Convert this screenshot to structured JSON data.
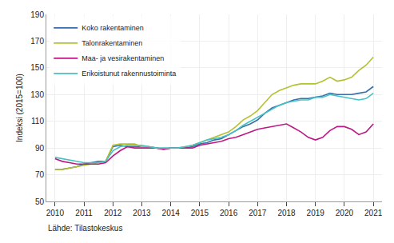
{
  "chart_data": {
    "type": "line",
    "ylabel": "Indeksi (2015=100)",
    "annotations": [
      "Lähde: Tilastokeskus"
    ],
    "x": [
      2010.0,
      2010.25,
      2010.5,
      2010.75,
      2011.0,
      2011.25,
      2011.5,
      2011.75,
      2012.0,
      2012.25,
      2012.5,
      2012.75,
      2013.0,
      2013.25,
      2013.5,
      2013.75,
      2014.0,
      2014.25,
      2014.5,
      2014.75,
      2015.0,
      2015.25,
      2015.5,
      2015.75,
      2016.0,
      2016.25,
      2016.5,
      2016.75,
      2017.0,
      2017.25,
      2017.5,
      2017.75,
      2018.0,
      2018.25,
      2018.5,
      2018.75,
      2019.0,
      2019.25,
      2019.5,
      2019.75,
      2020.0,
      2020.25,
      2020.5,
      2020.75,
      2021.0
    ],
    "series": [
      {
        "name": "Koko rakentaminen",
        "color": "#3a6ea8",
        "values": [
          74,
          74,
          75,
          76,
          78,
          79,
          80,
          80,
          91,
          92,
          91,
          91,
          91,
          91,
          90,
          89,
          90,
          90,
          90,
          91,
          93,
          94,
          96,
          97,
          100,
          103,
          106,
          108,
          111,
          116,
          120,
          122,
          124,
          126,
          127,
          127,
          128,
          129,
          131,
          130,
          130,
          130,
          131,
          132,
          136
        ]
      },
      {
        "name": "Talonrakentaminen",
        "color": "#b5c130",
        "values": [
          74,
          74,
          75,
          76,
          77,
          78,
          79,
          80,
          92,
          93,
          93,
          93,
          91,
          91,
          90,
          89,
          90,
          90,
          91,
          92,
          94,
          96,
          98,
          100,
          102,
          106,
          111,
          114,
          118,
          124,
          130,
          133,
          135,
          137,
          138,
          138,
          138,
          140,
          143,
          140,
          141,
          143,
          148,
          152,
          158
        ]
      },
      {
        "name": "Maa- ja vesirakentaminen",
        "color": "#be1884",
        "values": [
          82,
          80,
          79,
          78,
          78,
          78,
          78,
          79,
          84,
          88,
          91,
          90,
          90,
          90,
          90,
          89,
          90,
          90,
          90,
          90,
          92,
          93,
          94,
          95,
          97,
          98,
          100,
          102,
          104,
          105,
          106,
          107,
          108,
          105,
          102,
          98,
          96,
          98,
          103,
          106,
          106,
          104,
          100,
          102,
          108
        ]
      },
      {
        "name": "Erikoistunut rakennustoiminta",
        "color": "#45c3c3",
        "values": [
          83,
          82,
          81,
          80,
          79,
          79,
          79,
          80,
          88,
          91,
          92,
          92,
          92,
          91,
          90,
          90,
          90,
          90,
          91,
          92,
          94,
          96,
          97,
          98,
          100,
          103,
          107,
          110,
          113,
          116,
          119,
          122,
          124,
          125,
          126,
          126,
          128,
          128,
          130,
          129,
          128,
          127,
          126,
          127,
          131
        ]
      }
    ],
    "xlim": [
      2009.7,
      2021.3
    ],
    "xticks": [
      2010,
      2011,
      2012,
      2013,
      2014,
      2015,
      2016,
      2017,
      2018,
      2019,
      2020,
      2021
    ],
    "ylim": [
      50,
      190
    ],
    "yticks": [
      50,
      70,
      90,
      110,
      130,
      150,
      170,
      190
    ],
    "grid": true,
    "legend": "upper left"
  }
}
